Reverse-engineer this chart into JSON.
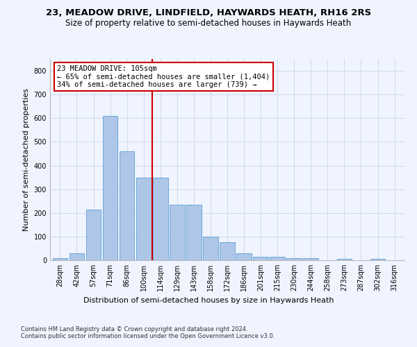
{
  "title": "23, MEADOW DRIVE, LINDFIELD, HAYWARDS HEATH, RH16 2RS",
  "subtitle": "Size of property relative to semi-detached houses in Haywards Heath",
  "xlabel": "Distribution of semi-detached houses by size in Haywards Heath",
  "ylabel": "Number of semi-detached properties",
  "categories": [
    "28sqm",
    "42sqm",
    "57sqm",
    "71sqm",
    "86sqm",
    "100sqm",
    "114sqm",
    "129sqm",
    "143sqm",
    "158sqm",
    "172sqm",
    "186sqm",
    "201sqm",
    "215sqm",
    "230sqm",
    "244sqm",
    "258sqm",
    "273sqm",
    "287sqm",
    "302sqm",
    "316sqm"
  ],
  "values": [
    10,
    30,
    215,
    610,
    460,
    350,
    350,
    235,
    235,
    100,
    75,
    30,
    15,
    15,
    10,
    8,
    0,
    5,
    0,
    5,
    0
  ],
  "bar_color": "#aec6e8",
  "bar_edge_color": "#5a9fd4",
  "grid_color": "#d0d8e8",
  "vline_x": 5.5,
  "vline_color": "#cc0000",
  "annotation_text": "23 MEADOW DRIVE: 105sqm\n← 65% of semi-detached houses are smaller (1,404)\n34% of semi-detached houses are larger (739) →",
  "annotation_box_color": "#ffffff",
  "annotation_border_color": "#cc0000",
  "ylim": [
    0,
    850
  ],
  "yticks": [
    0,
    100,
    200,
    300,
    400,
    500,
    600,
    700,
    800
  ],
  "footnote1": "Contains HM Land Registry data © Crown copyright and database right 2024.",
  "footnote2": "Contains public sector information licensed under the Open Government Licence v3.0.",
  "title_fontsize": 9.5,
  "subtitle_fontsize": 8.5,
  "tick_fontsize": 7,
  "ylabel_fontsize": 8,
  "xlabel_fontsize": 8,
  "annotation_fontsize": 7.5,
  "footnote_fontsize": 6,
  "background_color": "#f0f4ff"
}
